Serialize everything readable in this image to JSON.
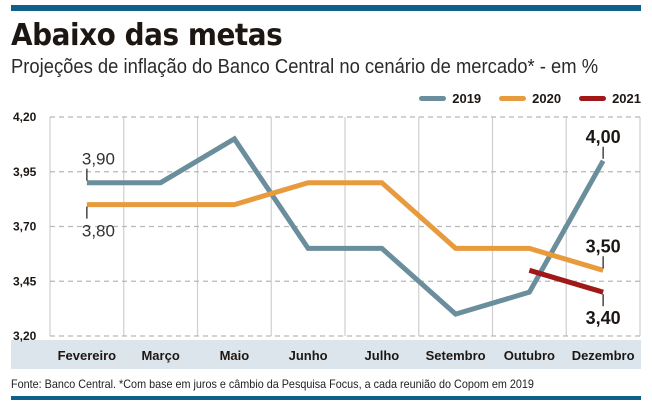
{
  "header": {
    "title": "Abaixo das metas",
    "subtitle": "Projeções de inflação do Banco Central no cenário de mercado* - em %"
  },
  "footer": {
    "source": "Fonte: Banco Central. *Com base em juros e câmbio da Pesquisa Focus, a cada reunião do Copom em 2019"
  },
  "colors": {
    "accent_bar": "#0e6189",
    "series_2019": "#6b8e9c",
    "series_2020": "#e89b3c",
    "series_2021": "#a01818",
    "label_band": "#dde5ec",
    "grid": "#b8b8b8"
  },
  "chart_data": {
    "type": "line",
    "title": "Abaixo das metas",
    "subtitle": "Projeções de inflação do Banco Central no cenário de mercado* - em %",
    "xlabel": "",
    "ylabel": "%",
    "categories": [
      "Fevereiro",
      "Março",
      "Maio",
      "Junho",
      "Julho",
      "Setembro",
      "Outubro",
      "Dezembro"
    ],
    "ylim": [
      3.2,
      4.2
    ],
    "yticks": [
      "4,20",
      "3,95",
      "3,70",
      "3,45",
      "3,20"
    ],
    "ytick_values": [
      4.2,
      3.95,
      3.7,
      3.45,
      3.2
    ],
    "grid": true,
    "legend_position": "top-right",
    "series": [
      {
        "name": "2019",
        "values": [
          3.9,
          3.9,
          4.1,
          3.6,
          3.6,
          3.3,
          3.4,
          4.0
        ]
      },
      {
        "name": "2020",
        "values": [
          3.8,
          3.8,
          3.8,
          3.9,
          3.9,
          3.6,
          3.6,
          3.5
        ]
      },
      {
        "name": "2021",
        "values": [
          null,
          null,
          null,
          null,
          null,
          null,
          3.5,
          3.4
        ]
      }
    ],
    "annotations": [
      {
        "series": "2019",
        "category": "Fevereiro",
        "text": "3,90",
        "placement": "above"
      },
      {
        "series": "2020",
        "category": "Fevereiro",
        "text": "3,80",
        "placement": "below"
      },
      {
        "series": "2019",
        "category": "Dezembro",
        "text": "4,00",
        "placement": "above"
      },
      {
        "series": "2020",
        "category": "Dezembro",
        "text": "3,50",
        "placement": "above"
      },
      {
        "series": "2021",
        "category": "Dezembro",
        "text": "3,40",
        "placement": "below"
      }
    ]
  }
}
